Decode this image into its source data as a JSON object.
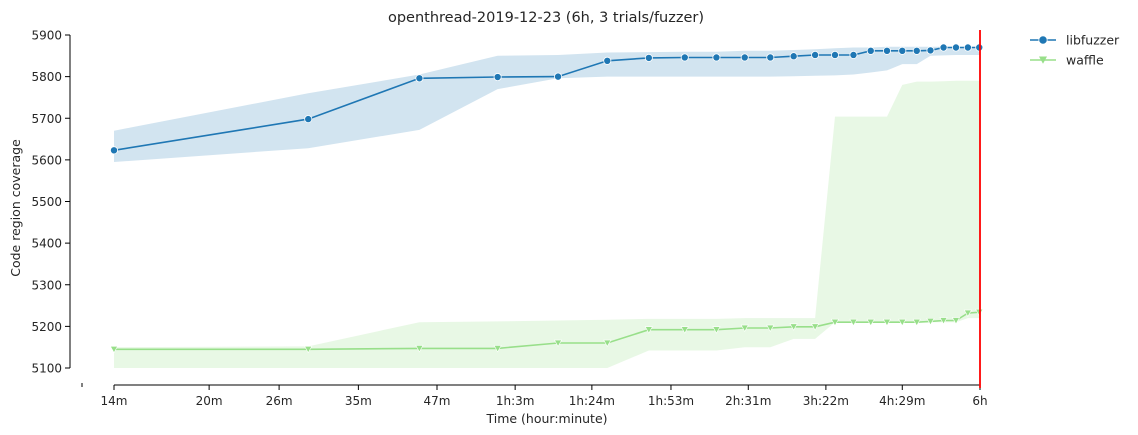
{
  "chart_data": {
    "type": "line",
    "title": "openthread-2019-12-23 (6h, 3 trials/fuzzer)",
    "xlabel": "Time (hour:minute)",
    "ylabel": "Code region coverage",
    "x_scale": "log",
    "x_ticks": [
      {
        "minutes": 14,
        "label": "14m"
      },
      {
        "minutes": 20,
        "label": "20m"
      },
      {
        "minutes": 26,
        "label": "26m"
      },
      {
        "minutes": 35,
        "label": "35m"
      },
      {
        "minutes": 47,
        "label": "47m"
      },
      {
        "minutes": 63,
        "label": "1h:3m"
      },
      {
        "minutes": 84,
        "label": "1h:24m"
      },
      {
        "minutes": 113,
        "label": "1h:53m"
      },
      {
        "minutes": 151,
        "label": "2h:31m"
      },
      {
        "minutes": 202,
        "label": "3h:22m"
      },
      {
        "minutes": 269,
        "label": "4h:29m"
      },
      {
        "minutes": 360,
        "label": "6h"
      }
    ],
    "ylim": [
      5100,
      5900
    ],
    "y_ticks": [
      5100,
      5200,
      5300,
      5400,
      5500,
      5600,
      5700,
      5800,
      5900
    ],
    "x_minutes": [
      14,
      29,
      44,
      59,
      74,
      89,
      104,
      119,
      134,
      149,
      164,
      179,
      194,
      209,
      224,
      239,
      254,
      269,
      284,
      299,
      314,
      329,
      344,
      359
    ],
    "series": [
      {
        "name": "libfuzzer",
        "color": "#1f77b4",
        "marker": "circle",
        "values": [
          5623,
          5698,
          5796,
          5799,
          5800,
          5838,
          5845,
          5846,
          5846,
          5846,
          5846,
          5849,
          5852,
          5852,
          5852,
          5862,
          5862,
          5862,
          5862,
          5863,
          5870,
          5870,
          5870,
          5870
        ],
        "ci_low": [
          5595,
          5628,
          5672,
          5770,
          5796,
          5800,
          5800,
          5800,
          5800,
          5800,
          5800,
          5801,
          5802,
          5803,
          5805,
          5810,
          5815,
          5830,
          5830,
          5850,
          5851,
          5852,
          5852,
          5852
        ],
        "ci_high": [
          5670,
          5760,
          5805,
          5850,
          5852,
          5858,
          5859,
          5860,
          5860,
          5862,
          5862,
          5864,
          5866,
          5868,
          5870,
          5870,
          5872,
          5872,
          5872,
          5872,
          5872,
          5872,
          5872,
          5872
        ]
      },
      {
        "name": "waffle",
        "color": "#98df8a",
        "marker": "triangle-down",
        "values": [
          5145,
          5145,
          5147,
          5147,
          5160,
          5160,
          5192,
          5192,
          5192,
          5196,
          5196,
          5199,
          5199,
          5210,
          5210,
          5210,
          5210,
          5210,
          5210,
          5212,
          5214,
          5214,
          5232,
          5234
        ],
        "ci_low": [
          5100,
          5100,
          5100,
          5100,
          5100,
          5100,
          5142,
          5142,
          5142,
          5150,
          5150,
          5170,
          5170,
          5210,
          5210,
          5210,
          5210,
          5210,
          5210,
          5210,
          5210,
          5210,
          5220,
          5220
        ],
        "ci_high": [
          5150,
          5152,
          5210,
          5212,
          5214,
          5216,
          5218,
          5218,
          5218,
          5220,
          5220,
          5220,
          5220,
          5704,
          5704,
          5704,
          5704,
          5780,
          5788,
          5788,
          5789,
          5790,
          5790,
          5790
        ]
      }
    ],
    "annotations": [
      {
        "type": "vline",
        "x_minutes": 360,
        "color": "#ff0000"
      }
    ],
    "grid": false,
    "legend_position": "top-right outside"
  }
}
